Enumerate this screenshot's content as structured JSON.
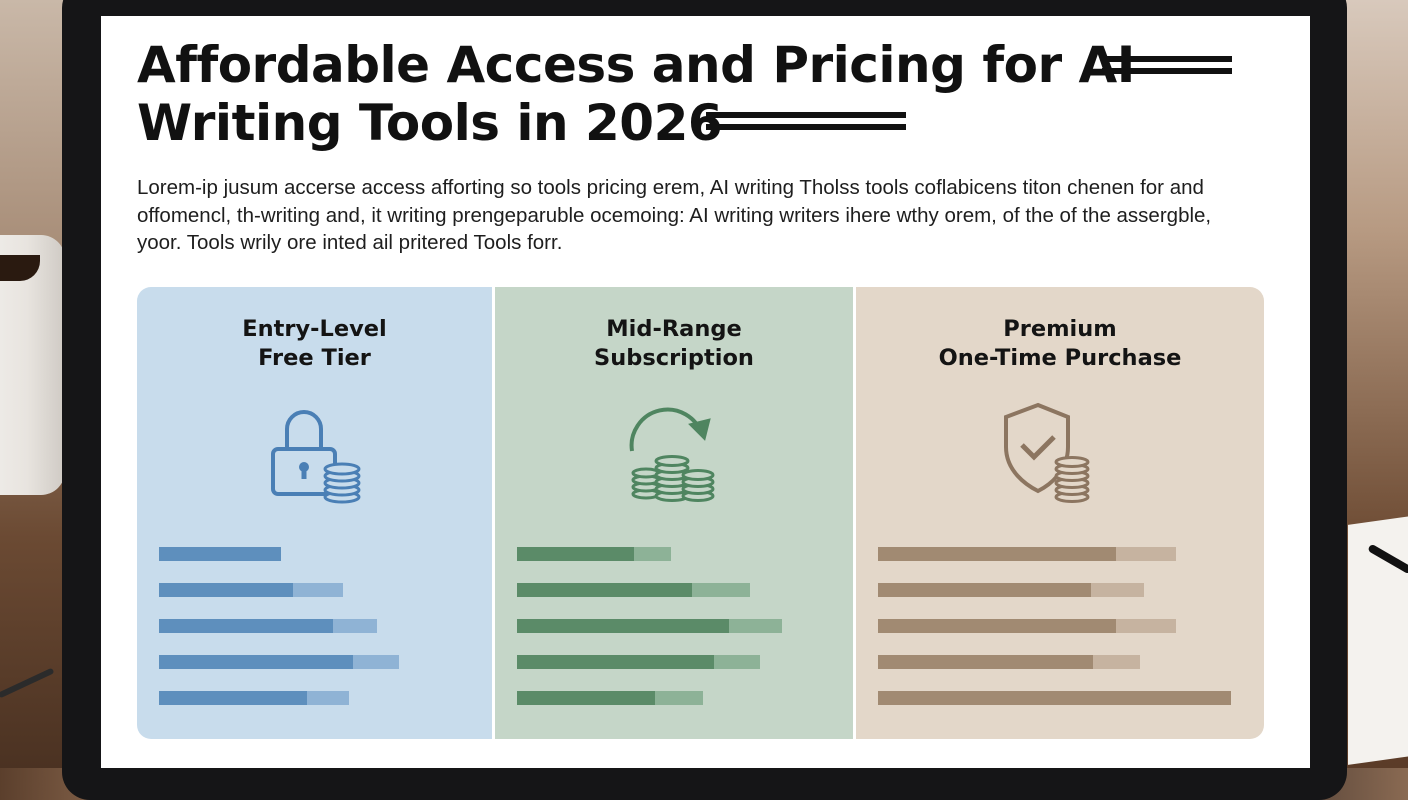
{
  "page": {
    "title": "Affordable Access and Pricing for AI Writing Tools in 2026",
    "intro": "Lorem-ip jusum accerse access afforting so tools pricing erem, AI writing Tholss tools coflabicens titon chenen for and offomencl, th-writing and, it writing prengeparuble ocemoing: AI writing writers ihere wthy orem, of the of the assergble, yoor. Tools wrily ore inted ail pritered Tools forr."
  },
  "tiers": [
    {
      "name_line1": "Entry-Level",
      "name_line2": "Free Tier",
      "icon": "padlock-coins-icon",
      "color_accent": "#5e8fbd",
      "bars": [
        {
          "total": 0.39,
          "fill": 1.0
        },
        {
          "total": 0.59,
          "fill": 0.73
        },
        {
          "total": 0.7,
          "fill": 0.8
        },
        {
          "total": 0.77,
          "fill": 0.81
        },
        {
          "total": 0.61,
          "fill": 0.78
        }
      ]
    },
    {
      "name_line1": "Mid-Range",
      "name_line2": "Subscription",
      "icon": "coins-cycle-icon",
      "color_accent": "#5b8b68",
      "bars": [
        {
          "total": 0.49,
          "fill": 0.76
        },
        {
          "total": 0.74,
          "fill": 0.75
        },
        {
          "total": 0.84,
          "fill": 0.8
        },
        {
          "total": 0.77,
          "fill": 0.81
        },
        {
          "total": 0.59,
          "fill": 0.74
        }
      ]
    },
    {
      "name_line1": "Premium",
      "name_line2": "One-Time Purchase",
      "icon": "shield-check-coins-icon",
      "color_accent": "#a18a72",
      "bars": [
        {
          "total": 0.82,
          "fill": 0.8
        },
        {
          "total": 0.73,
          "fill": 0.8
        },
        {
          "total": 0.82,
          "fill": 0.8
        },
        {
          "total": 0.72,
          "fill": 0.82
        },
        {
          "total": 0.97,
          "fill": 1.0
        }
      ]
    }
  ]
}
